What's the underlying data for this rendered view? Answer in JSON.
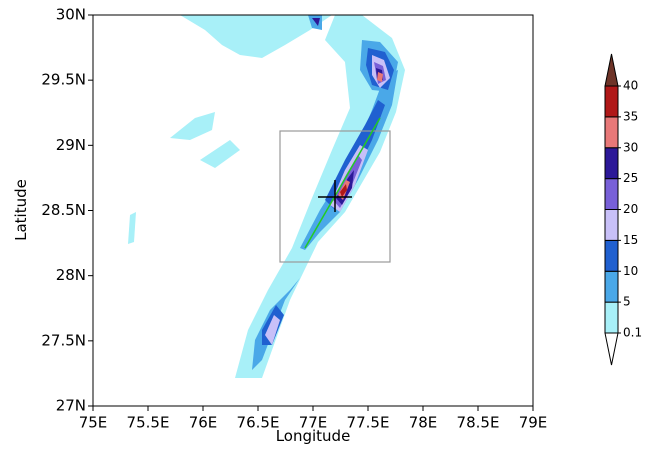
{
  "map": {
    "xlabel": "Longitude",
    "ylabel": "Latitude",
    "xlim": [
      75,
      79
    ],
    "xticks": [
      {
        "value": 75,
        "label": "75E"
      },
      {
        "value": 75.5,
        "label": "75.5E"
      },
      {
        "value": 76,
        "label": "76E"
      },
      {
        "value": 76.5,
        "label": "76.5E"
      },
      {
        "value": 77,
        "label": "77E"
      },
      {
        "value": 77.5,
        "label": "77.5E"
      },
      {
        "value": 78,
        "label": "78E"
      },
      {
        "value": 78.5,
        "label": "78.5E"
      },
      {
        "value": 79,
        "label": "79E"
      }
    ],
    "ylim": [
      27,
      30
    ],
    "yticks": [
      {
        "value": 27,
        "label": "27N"
      },
      {
        "value": 27.5,
        "label": "27.5N"
      },
      {
        "value": 28,
        "label": "28N"
      },
      {
        "value": 28.5,
        "label": "28.5N"
      },
      {
        "value": 29,
        "label": "29N"
      },
      {
        "value": 29.5,
        "label": "29.5N"
      },
      {
        "value": 30,
        "label": "30N"
      }
    ],
    "colorbar": {
      "levels": [
        0.1,
        5,
        10,
        15,
        20,
        25,
        30,
        35,
        40
      ],
      "colors": [
        "#ffffff",
        "#a8f0f8",
        "#4aa8e8",
        "#2060d0",
        "#c8c0f8",
        "#7860d8",
        "#2c1898",
        "#e87878",
        "#b01818",
        "#6e3428"
      ]
    }
  }
}
